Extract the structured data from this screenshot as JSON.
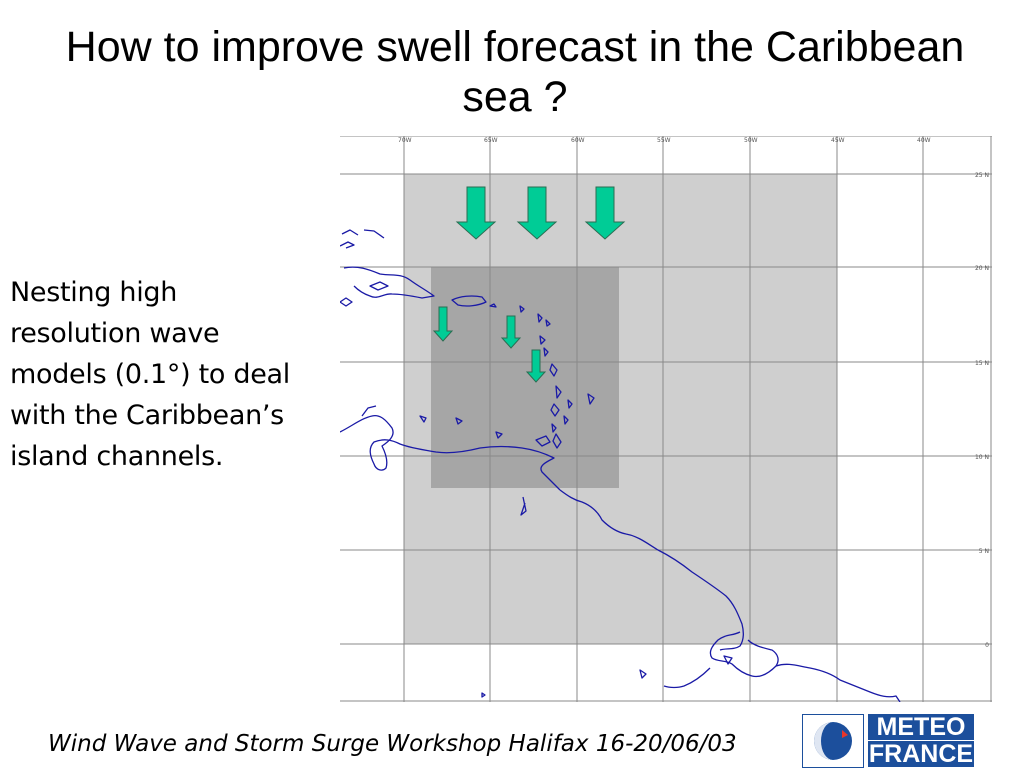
{
  "slide": {
    "title": "How to improve swell forecast in the Caribbean sea ?",
    "body": "Nesting high resolution wave models (0.1°) to deal with the Caribbean’s island channels.",
    "footer": "Wind Wave and Storm Surge Workshop Halifax 16-20/06/03"
  },
  "map": {
    "longitude_labels": [
      "70W",
      "65W",
      "60W",
      "55W",
      "50W",
      "45W",
      "40W"
    ],
    "latitude_labels": [
      "25 N",
      "20 N",
      "15 N",
      "10 N",
      "5 N",
      "0"
    ],
    "colors": {
      "outer_domain": "#cfcfcf",
      "nested_domain": "#a6a6a6",
      "coastline": "#1a1aa6",
      "arrow_fill": "#00cc96",
      "gridline": "#888888"
    },
    "large_arrow_count": 3,
    "small_arrow_count": 3,
    "arrow_icon": "down-arrow-icon"
  },
  "logo": {
    "line1": "METEO",
    "line2": "FRANCE",
    "colors": {
      "text_bg": "#1c4f9c",
      "globe": "#1c4f9c",
      "accent": "#e8352b"
    }
  }
}
